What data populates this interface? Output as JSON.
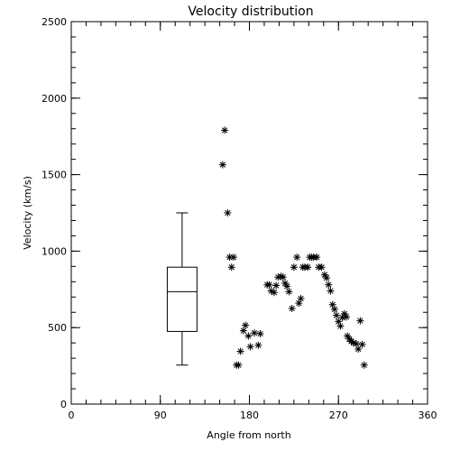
{
  "chart_data": {
    "type": "scatter",
    "title": "Velocity distribution",
    "xlabel": "Angle from north",
    "ylabel": "Velocity (km/s)",
    "xlim": [
      0,
      360
    ],
    "ylim": [
      0,
      2500
    ],
    "x_ticks": [
      "0",
      "90",
      "180",
      "270",
      "360"
    ],
    "y_ticks": [
      "0",
      "500",
      "1000",
      "1500",
      "2000",
      "2500"
    ],
    "x_tick_values": [
      0,
      90,
      180,
      270,
      360
    ],
    "y_tick_values": [
      0,
      500,
      1000,
      1500,
      2000,
      2500
    ],
    "x_minor_step": 15,
    "y_minor_step": 100,
    "marker": "asterisk",
    "grid": false,
    "points": [
      {
        "x": 155,
        "y": 1790
      },
      {
        "x": 153,
        "y": 1565
      },
      {
        "x": 158,
        "y": 1250
      },
      {
        "x": 160,
        "y": 960
      },
      {
        "x": 164,
        "y": 960
      },
      {
        "x": 162,
        "y": 895
      },
      {
        "x": 167,
        "y": 255
      },
      {
        "x": 169,
        "y": 255
      },
      {
        "x": 171,
        "y": 345
      },
      {
        "x": 174,
        "y": 480
      },
      {
        "x": 176,
        "y": 515
      },
      {
        "x": 179,
        "y": 445
      },
      {
        "x": 181,
        "y": 375
      },
      {
        "x": 185,
        "y": 465
      },
      {
        "x": 189,
        "y": 385
      },
      {
        "x": 191,
        "y": 460
      },
      {
        "x": 198,
        "y": 780
      },
      {
        "x": 200,
        "y": 780
      },
      {
        "x": 202,
        "y": 740
      },
      {
        "x": 205,
        "y": 730
      },
      {
        "x": 207,
        "y": 775
      },
      {
        "x": 209,
        "y": 830
      },
      {
        "x": 212,
        "y": 835
      },
      {
        "x": 214,
        "y": 830
      },
      {
        "x": 216,
        "y": 790
      },
      {
        "x": 218,
        "y": 770
      },
      {
        "x": 220,
        "y": 735
      },
      {
        "x": 223,
        "y": 625
      },
      {
        "x": 225,
        "y": 895
      },
      {
        "x": 228,
        "y": 960
      },
      {
        "x": 230,
        "y": 660
      },
      {
        "x": 232,
        "y": 690
      },
      {
        "x": 234,
        "y": 895
      },
      {
        "x": 236,
        "y": 895
      },
      {
        "x": 239,
        "y": 895
      },
      {
        "x": 241,
        "y": 960
      },
      {
        "x": 243,
        "y": 960
      },
      {
        "x": 245,
        "y": 960
      },
      {
        "x": 248,
        "y": 960
      },
      {
        "x": 250,
        "y": 895
      },
      {
        "x": 253,
        "y": 895
      },
      {
        "x": 256,
        "y": 845
      },
      {
        "x": 258,
        "y": 825
      },
      {
        "x": 260,
        "y": 780
      },
      {
        "x": 262,
        "y": 740
      },
      {
        "x": 264,
        "y": 650
      },
      {
        "x": 266,
        "y": 620
      },
      {
        "x": 268,
        "y": 580
      },
      {
        "x": 270,
        "y": 540
      },
      {
        "x": 272,
        "y": 510
      },
      {
        "x": 274,
        "y": 565
      },
      {
        "x": 276,
        "y": 590
      },
      {
        "x": 278,
        "y": 570
      },
      {
        "x": 279,
        "y": 445
      },
      {
        "x": 281,
        "y": 425
      },
      {
        "x": 283,
        "y": 410
      },
      {
        "x": 285,
        "y": 400
      },
      {
        "x": 288,
        "y": 395
      },
      {
        "x": 290,
        "y": 360
      },
      {
        "x": 292,
        "y": 545
      },
      {
        "x": 294,
        "y": 390
      },
      {
        "x": 296,
        "y": 255
      }
    ],
    "boxplot": {
      "x": 112,
      "width": 30,
      "whisker_low": 255,
      "q1": 475,
      "median": 735,
      "q3": 895,
      "whisker_high": 1250
    }
  }
}
